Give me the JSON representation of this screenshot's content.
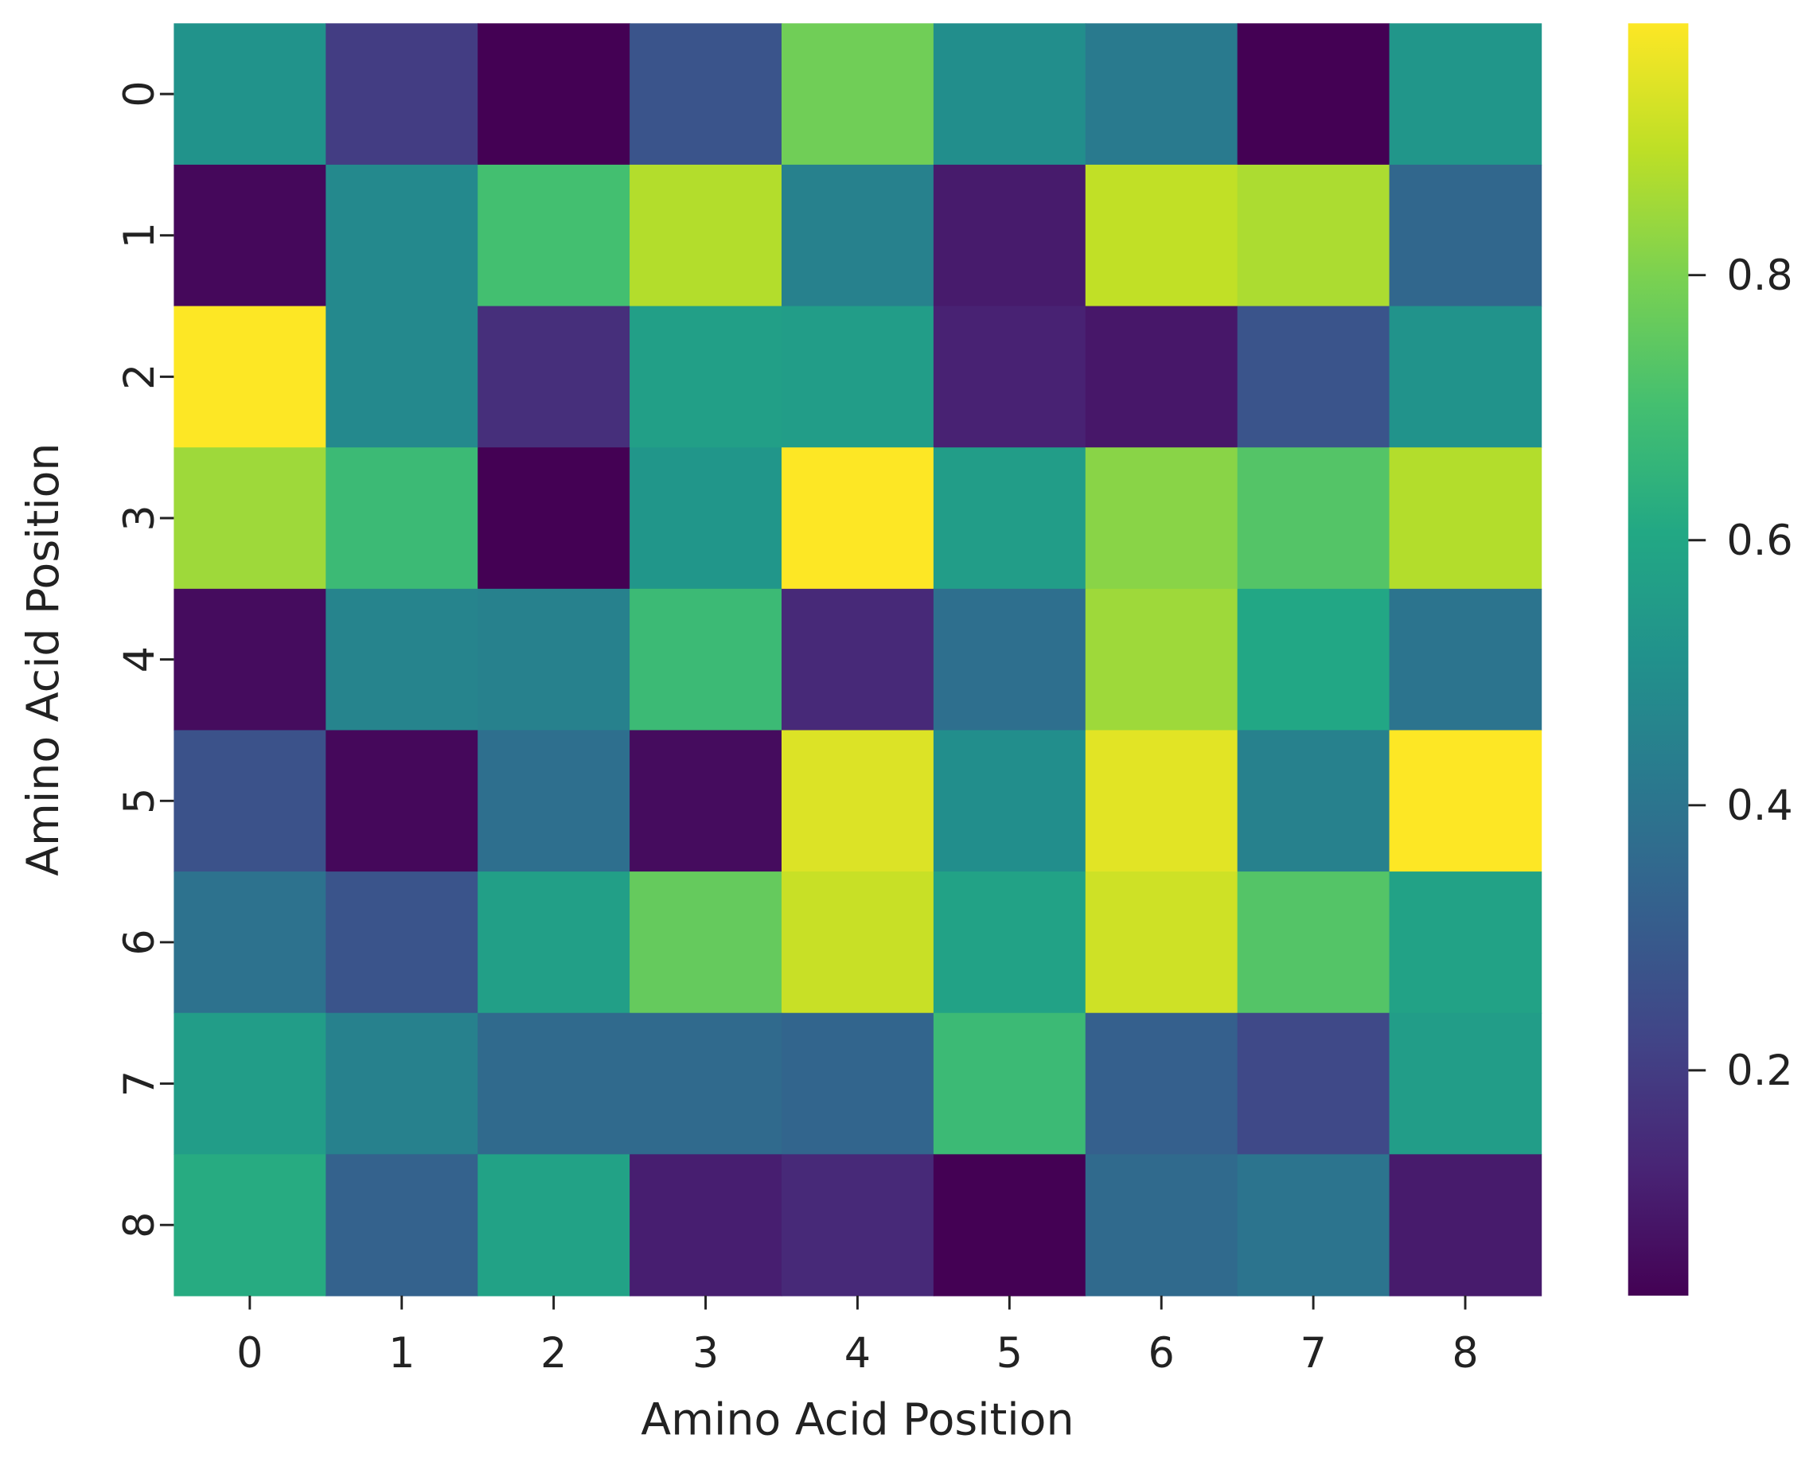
{
  "chart_data": {
    "type": "heatmap",
    "title": "",
    "xlabel": "Amino Acid Position",
    "ylabel": "Amino Acid Position",
    "x_categories": [
      "0",
      "1",
      "2",
      "3",
      "4",
      "5",
      "6",
      "7",
      "8"
    ],
    "y_categories": [
      "0",
      "1",
      "2",
      "3",
      "4",
      "5",
      "6",
      "7",
      "8"
    ],
    "colormap": "viridis",
    "color_range": [
      0.03,
      0.99
    ],
    "colorbar_ticks": [
      0.2,
      0.4,
      0.6,
      0.8
    ],
    "colorbar_tick_labels": [
      "0.2",
      "0.4",
      "0.6",
      "0.8"
    ],
    "values": [
      [
        0.52,
        0.2,
        0.03,
        0.28,
        0.78,
        0.5,
        0.42,
        0.03,
        0.53
      ],
      [
        0.05,
        0.48,
        0.7,
        0.88,
        0.45,
        0.1,
        0.9,
        0.87,
        0.35
      ],
      [
        0.99,
        0.48,
        0.16,
        0.57,
        0.56,
        0.12,
        0.09,
        0.28,
        0.52
      ],
      [
        0.85,
        0.68,
        0.03,
        0.53,
        0.99,
        0.56,
        0.82,
        0.73,
        0.88
      ],
      [
        0.06,
        0.46,
        0.45,
        0.68,
        0.14,
        0.38,
        0.85,
        0.6,
        0.4
      ],
      [
        0.27,
        0.05,
        0.38,
        0.06,
        0.94,
        0.5,
        0.95,
        0.45,
        0.99
      ],
      [
        0.39,
        0.28,
        0.57,
        0.76,
        0.91,
        0.58,
        0.92,
        0.73,
        0.58
      ],
      [
        0.56,
        0.45,
        0.36,
        0.36,
        0.34,
        0.68,
        0.32,
        0.24,
        0.56
      ],
      [
        0.62,
        0.33,
        0.58,
        0.11,
        0.14,
        0.03,
        0.36,
        0.4,
        0.1
      ]
    ]
  }
}
